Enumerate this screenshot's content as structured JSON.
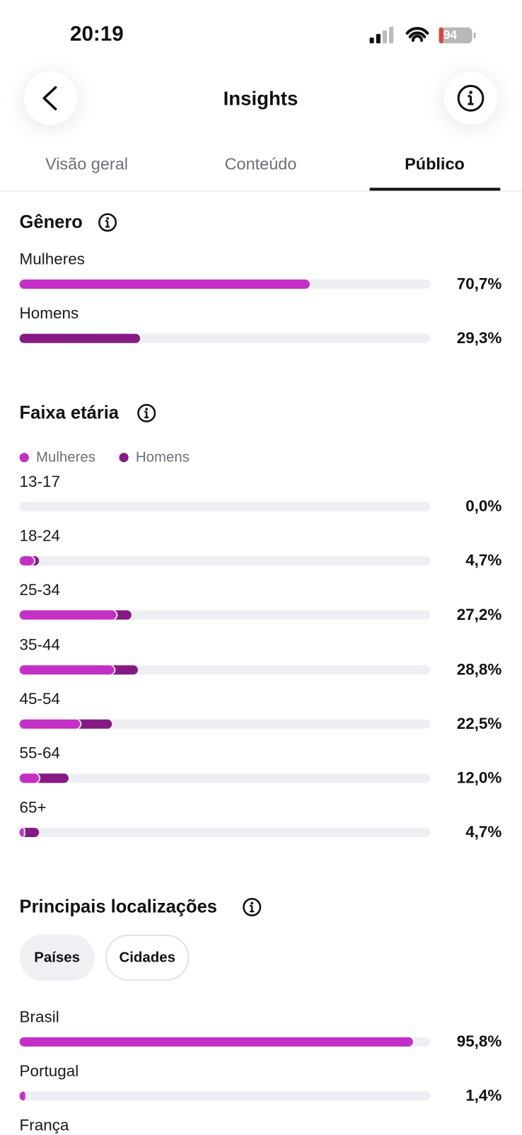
{
  "status_bar": {
    "time": "20:19",
    "battery": "94"
  },
  "header": {
    "title": "Insights"
  },
  "tabs": [
    "Visão geral",
    "Conteúdo",
    "Público"
  ],
  "gender": {
    "title": "Gênero",
    "rows": [
      {
        "label": "Mulheres",
        "value": 70.7,
        "value_label": "70,7%"
      },
      {
        "label": "Homens",
        "value": 29.3,
        "value_label": "29,3%"
      }
    ]
  },
  "age": {
    "title": "Faixa etária",
    "legend": [
      "Mulheres",
      "Homens"
    ],
    "rows": [
      {
        "label": "13-17",
        "women": 0,
        "men": 0,
        "value": 0,
        "value_label": "0,0%"
      },
      {
        "label": "18-24",
        "women": 3.5,
        "men": 1.2,
        "value": 4.7,
        "value_label": "4,7%"
      },
      {
        "label": "25-34",
        "women": 23.5,
        "men": 3.7,
        "value": 27.2,
        "value_label": "27,2%"
      },
      {
        "label": "35-44",
        "women": 23.0,
        "men": 5.8,
        "value": 28.8,
        "value_label": "28,8%"
      },
      {
        "label": "45-54",
        "women": 14.7,
        "men": 7.8,
        "value": 22.5,
        "value_label": "22,5%"
      },
      {
        "label": "55-64",
        "women": 4.7,
        "men": 7.3,
        "value": 12.0,
        "value_label": "12,0%"
      },
      {
        "label": "65+",
        "women": 1.0,
        "men": 3.7,
        "value": 4.7,
        "value_label": "4,7%"
      }
    ]
  },
  "locations": {
    "title": "Principais localizações",
    "filters": [
      "Países",
      "Cidades"
    ],
    "rows": [
      {
        "label": "Brasil",
        "value": 95.8,
        "value_label": "95,8%"
      },
      {
        "label": "Portugal",
        "value": 1.4,
        "value_label": "1,4%"
      },
      {
        "label": "França"
      }
    ]
  }
}
